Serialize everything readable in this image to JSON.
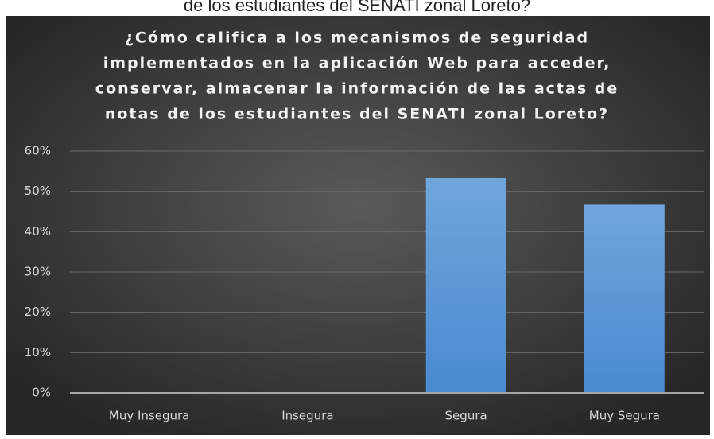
{
  "chart_data": {
    "type": "bar",
    "caption": "de los estudiantes del SENATI zonal Loreto?",
    "title": [
      "¿Cómo califica a los mecanismos de seguridad",
      "implementados en la aplicación Web para acceder,",
      "conservar, almacenar la información de las actas de",
      "notas de los estudiantes del SENATI zonal Loreto?"
    ],
    "categories": [
      "Muy Insegura",
      "Insegura",
      "Segura",
      "Muy Segura"
    ],
    "values": [
      0,
      0,
      53.3,
      46.7
    ],
    "color": "#5b9bd5",
    "ylim": [
      0,
      60
    ],
    "yticks": [
      {
        "value": 0,
        "label": "0%"
      },
      {
        "value": 10,
        "label": "10%"
      },
      {
        "value": 20,
        "label": "20%"
      },
      {
        "value": 30,
        "label": "30%"
      },
      {
        "value": 40,
        "label": "40%"
      },
      {
        "value": 50,
        "label": "50%"
      },
      {
        "value": 60,
        "label": "60%"
      }
    ],
    "grid": true
  }
}
